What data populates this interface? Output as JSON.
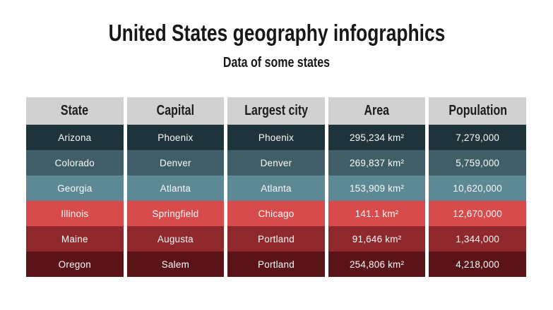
{
  "title": "United States geography infographics",
  "subtitle": "Data of some states",
  "table": {
    "header_bg": "#d1d1d1",
    "header_text_color": "#1c1c1c",
    "row_text_color": "#fafafa",
    "columns": [
      "State",
      "Capital",
      "Largest city",
      "Area",
      "Population"
    ],
    "rows": [
      {
        "state": "Arizona",
        "capital": "Phoenix",
        "largest_city": "Phoenix",
        "area": "295,234 km²",
        "population": "7,279,000",
        "color": "#1f333b"
      },
      {
        "state": "Colorado",
        "capital": "Denver",
        "largest_city": "Denver",
        "area": "269,837 km²",
        "population": "5,759,000",
        "color": "#3f5e68"
      },
      {
        "state": "Georgia",
        "capital": "Atlanta",
        "largest_city": "Atlanta",
        "area": "153,909 km²",
        "population": "10,620,000",
        "color": "#5d8995"
      },
      {
        "state": "Illinois",
        "capital": "Springfield",
        "largest_city": "Chicago",
        "area": "141.1 km²",
        "population": "12,670,000",
        "color": "#d84b4d"
      },
      {
        "state": "Maine",
        "capital": "Augusta",
        "largest_city": "Portland",
        "area": "91,646 km²",
        "population": "1,344,000",
        "color": "#8e282d"
      },
      {
        "state": "Oregon",
        "capital": "Salem",
        "largest_city": "Portland",
        "area": "254,806 km²",
        "population": "4,218,000",
        "color": "#5a1317"
      }
    ]
  }
}
